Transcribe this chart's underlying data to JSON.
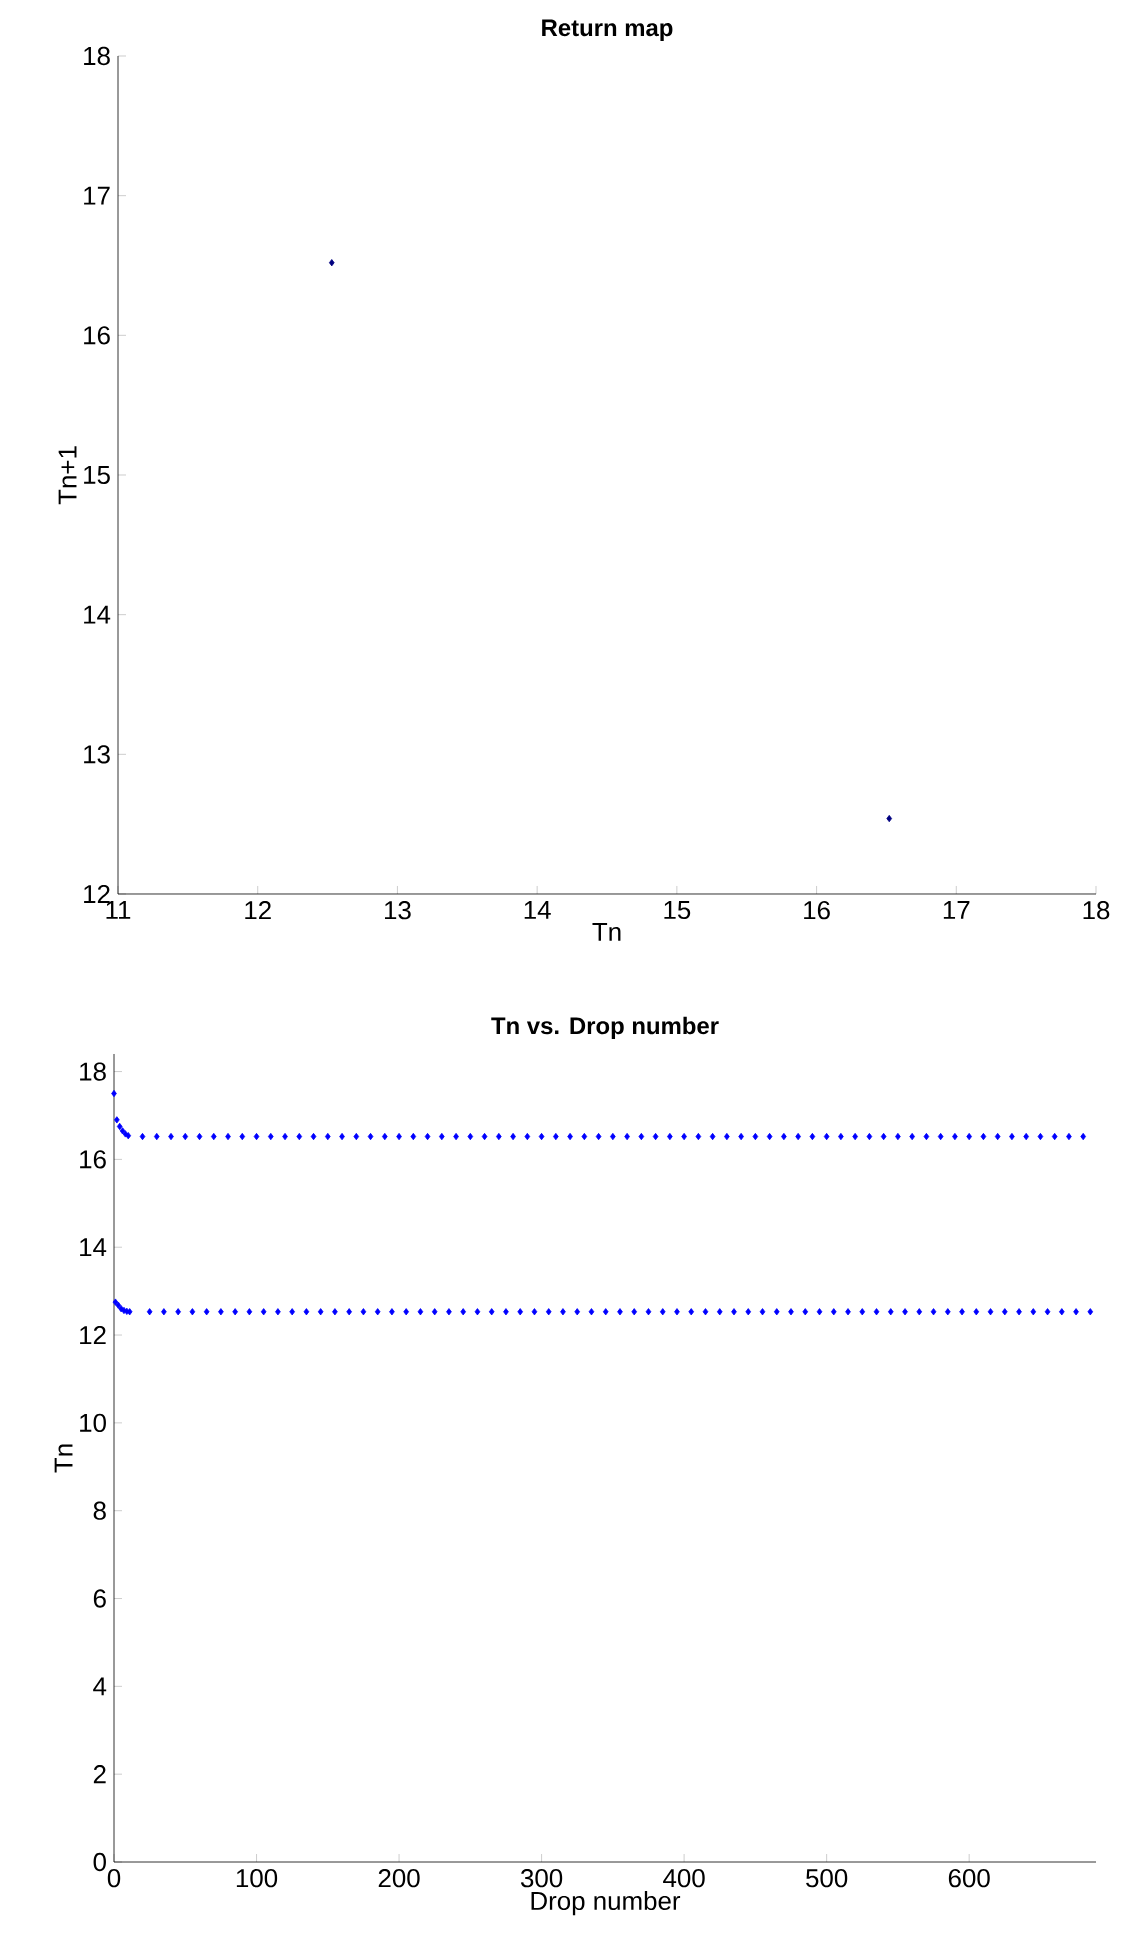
{
  "chart_data": [
    {
      "type": "scatter",
      "title": "Return map",
      "xlabel": "Tn",
      "ylabel": "Tn+1",
      "xlim": [
        11,
        18
      ],
      "ylim": [
        12,
        18
      ],
      "xticks": [
        11,
        12,
        13,
        14,
        15,
        16,
        17,
        18
      ],
      "yticks": [
        12,
        13,
        14,
        15,
        16,
        17,
        18
      ],
      "marker": "diamond",
      "series": [
        {
          "color": "#000080",
          "x": [
            12.53,
            16.52
          ],
          "values": [
            16.52,
            12.54
          ]
        }
      ]
    },
    {
      "type": "scatter",
      "title": "Tn vs. Drop number",
      "xlabel": "Drop number",
      "ylabel": "Tn",
      "xlim": [
        0,
        689
      ],
      "ylim": [
        0,
        18.4
      ],
      "xticks": [
        0,
        100,
        200,
        300,
        400,
        500,
        600
      ],
      "yticks": [
        0,
        2,
        4,
        6,
        8,
        10,
        12,
        14,
        16,
        18
      ],
      "marker": "diamond",
      "series": [
        {
          "color": "#0000ff",
          "x": [
            0,
            2,
            4,
            6,
            8,
            10,
            20,
            30,
            40,
            50,
            60,
            70,
            80,
            90,
            100,
            110,
            120,
            130,
            140,
            150,
            160,
            170,
            180,
            190,
            200,
            210,
            220,
            230,
            240,
            250,
            260,
            270,
            280,
            290,
            300,
            310,
            320,
            330,
            340,
            350,
            360,
            370,
            380,
            390,
            400,
            410,
            420,
            430,
            440,
            450,
            460,
            470,
            480,
            490,
            500,
            510,
            520,
            530,
            540,
            550,
            560,
            570,
            580,
            590,
            600,
            610,
            620,
            630,
            640,
            650,
            660,
            670,
            680
          ],
          "values": [
            17.5,
            16.9,
            16.75,
            16.65,
            16.58,
            16.54,
            16.52,
            16.52,
            16.52,
            16.52,
            16.52,
            16.52,
            16.52,
            16.52,
            16.52,
            16.52,
            16.52,
            16.52,
            16.52,
            16.52,
            16.52,
            16.52,
            16.52,
            16.52,
            16.52,
            16.52,
            16.52,
            16.52,
            16.52,
            16.52,
            16.52,
            16.52,
            16.52,
            16.52,
            16.52,
            16.52,
            16.52,
            16.52,
            16.52,
            16.52,
            16.52,
            16.52,
            16.52,
            16.52,
            16.52,
            16.52,
            16.52,
            16.52,
            16.52,
            16.52,
            16.52,
            16.52,
            16.52,
            16.52,
            16.52,
            16.52,
            16.52,
            16.52,
            16.52,
            16.52,
            16.52,
            16.52,
            16.52,
            16.52,
            16.52,
            16.52,
            16.52,
            16.52,
            16.52,
            16.52,
            16.52,
            16.52,
            16.52
          ]
        },
        {
          "color": "#0000ff",
          "x": [
            1,
            3,
            5,
            7,
            9,
            11,
            25,
            35,
            45,
            55,
            65,
            75,
            85,
            95,
            105,
            115,
            125,
            135,
            145,
            155,
            165,
            175,
            185,
            195,
            205,
            215,
            225,
            235,
            245,
            255,
            265,
            275,
            285,
            295,
            305,
            315,
            325,
            335,
            345,
            355,
            365,
            375,
            385,
            395,
            405,
            415,
            425,
            435,
            445,
            455,
            465,
            475,
            485,
            495,
            505,
            515,
            525,
            535,
            545,
            555,
            565,
            575,
            585,
            595,
            605,
            615,
            625,
            635,
            645,
            655,
            665,
            675,
            685
          ],
          "values": [
            12.75,
            12.68,
            12.6,
            12.56,
            12.54,
            12.53,
            12.53,
            12.53,
            12.53,
            12.53,
            12.53,
            12.53,
            12.53,
            12.53,
            12.53,
            12.53,
            12.53,
            12.53,
            12.53,
            12.53,
            12.53,
            12.53,
            12.53,
            12.53,
            12.53,
            12.53,
            12.53,
            12.53,
            12.53,
            12.53,
            12.53,
            12.53,
            12.53,
            12.53,
            12.53,
            12.53,
            12.53,
            12.53,
            12.53,
            12.53,
            12.53,
            12.53,
            12.53,
            12.53,
            12.53,
            12.53,
            12.53,
            12.53,
            12.53,
            12.53,
            12.53,
            12.53,
            12.53,
            12.53,
            12.53,
            12.53,
            12.53,
            12.53,
            12.53,
            12.53,
            12.53,
            12.53,
            12.53,
            12.53,
            12.53,
            12.53,
            12.53,
            12.53,
            12.53,
            12.53,
            12.53,
            12.53,
            12.53
          ]
        }
      ]
    }
  ]
}
